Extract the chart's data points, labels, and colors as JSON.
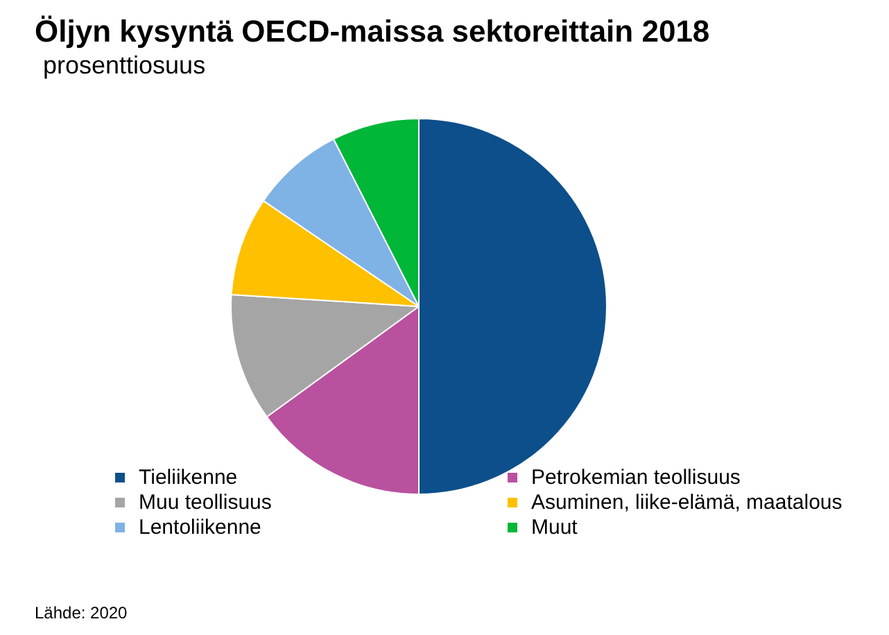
{
  "chart_data": {
    "type": "pie",
    "title": "Öljyn kysyntä OECD-maissa sektoreittain 2018",
    "subtitle": "prosenttiosuus",
    "categories": [
      "Tieliikenne",
      "Petrokemian teollisuus",
      "Muu teollisuus",
      "Asuminen, liike-elämä, maatalous",
      "Lentoliikenne",
      "Muut"
    ],
    "values": [
      50,
      15,
      11,
      8.5,
      8,
      7.5
    ],
    "colors": [
      "#0d4f8b",
      "#b9519e",
      "#a5a5a5",
      "#ffc000",
      "#7fb2e5",
      "#00b738"
    ],
    "legend": "bottom",
    "annotations": [
      "Lähde: 2020"
    ]
  }
}
